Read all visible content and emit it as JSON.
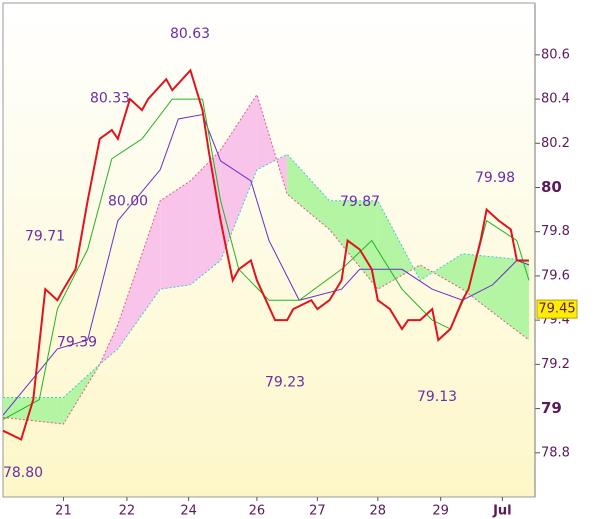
{
  "chart_data": {
    "type": "line",
    "x": [
      0,
      3,
      5,
      7,
      9,
      10,
      12,
      14,
      16,
      18,
      19,
      21,
      23,
      24,
      27,
      28,
      31,
      33,
      34,
      36,
      38,
      39,
      41,
      42,
      45,
      47,
      48,
      51,
      52,
      54,
      56,
      57,
      59,
      61,
      62,
      64,
      66,
      67,
      69,
      71,
      72,
      74,
      76,
      77,
      79,
      80,
      82,
      84,
      85,
      87
    ],
    "series": [
      {
        "color": "#e0141e",
        "values": [
          78.9,
          78.86,
          79.04,
          79.54,
          79.49,
          79.54,
          79.63,
          79.94,
          80.22,
          80.26,
          80.22,
          80.4,
          80.35,
          80.4,
          80.49,
          80.44,
          80.53,
          80.35,
          80.17,
          79.85,
          79.58,
          79.63,
          79.67,
          79.58,
          79.4,
          79.4,
          79.45,
          79.49,
          79.45,
          79.49,
          79.58,
          79.76,
          79.72,
          79.63,
          79.49,
          79.45,
          79.36,
          79.4,
          79.4,
          79.45,
          79.31,
          79.36,
          79.49,
          79.54,
          79.76,
          79.9,
          79.85,
          79.81,
          79.67,
          79.67
        ]
      }
    ],
    "conversion_line": {
      "color": "#22b422",
      "x": [
        0,
        6,
        9,
        14,
        18,
        23,
        28,
        33,
        36,
        39,
        44,
        49,
        56,
        61,
        66,
        71,
        74,
        77,
        80,
        85,
        87
      ],
      "values": [
        78.95,
        79.04,
        79.45,
        79.72,
        80.13,
        80.22,
        80.4,
        80.4,
        79.94,
        79.63,
        79.49,
        79.49,
        79.63,
        79.76,
        79.54,
        79.4,
        79.36,
        79.54,
        79.85,
        79.76,
        79.58
      ]
    },
    "base_line": {
      "color": "#6a2fc8",
      "x": [
        0,
        9,
        14,
        19,
        26,
        29,
        33,
        36,
        41,
        44,
        49,
        56,
        59,
        66,
        71,
        76,
        81,
        85,
        87
      ],
      "values": [
        78.97,
        79.27,
        79.31,
        79.85,
        80.08,
        80.31,
        80.33,
        80.12,
        80.03,
        79.76,
        79.49,
        79.54,
        79.63,
        79.63,
        79.54,
        79.49,
        79.56,
        79.67,
        79.65
      ]
    },
    "cloud": {
      "x": [
        0,
        10,
        16,
        19,
        26,
        31,
        36,
        42,
        47,
        54,
        62,
        69,
        76,
        87
      ],
      "span_a": {
        "color": "#3cc8d8",
        "values": [
          79.05,
          79.05,
          79.2,
          79.27,
          79.54,
          79.56,
          79.67,
          80.08,
          80.15,
          79.94,
          79.94,
          79.58,
          79.7,
          79.67
        ]
      },
      "span_b": {
        "color": "#e05a8a",
        "values": [
          78.96,
          78.93,
          79.2,
          79.38,
          79.94,
          80.03,
          80.17,
          80.42,
          79.97,
          79.81,
          79.54,
          79.65,
          79.54,
          79.31
        ]
      },
      "up_color": "#b4f5a4",
      "down_color": "#f9c4ea"
    },
    "xlim": [
      0,
      88
    ],
    "xticks": [
      {
        "value": 10,
        "label": "21"
      },
      {
        "value": 20.5,
        "label": "22"
      },
      {
        "value": 30.7,
        "label": "24"
      },
      {
        "value": 42,
        "label": "26"
      },
      {
        "value": 52,
        "label": "27"
      },
      {
        "value": 62,
        "label": "28"
      },
      {
        "value": 72.4,
        "label": "29"
      },
      {
        "value": 82.6,
        "label": "Jul"
      }
    ],
    "ylim": [
      78.6,
      80.83
    ],
    "yticks": [
      78.8,
      79,
      79.2,
      79.4,
      79.6,
      79.8,
      80,
      80.2,
      80.4,
      80.6
    ],
    "annotations": [
      {
        "value": 80.63,
        "label": "80.63"
      },
      {
        "value": 80.33,
        "label": "80.33"
      },
      {
        "value": 80.0,
        "label": "80.00"
      },
      {
        "value": 79.71,
        "label": "79.71"
      },
      {
        "value": 79.39,
        "label": "79.39"
      },
      {
        "value": 79.23,
        "label": "79.23"
      },
      {
        "value": 79.87,
        "label": "79.87"
      },
      {
        "value": 79.13,
        "label": "79.13"
      },
      {
        "value": 79.98,
        "label": "79.98"
      },
      {
        "value": 78.8,
        "label": "78.80"
      }
    ],
    "last_price": 79.45
  }
}
